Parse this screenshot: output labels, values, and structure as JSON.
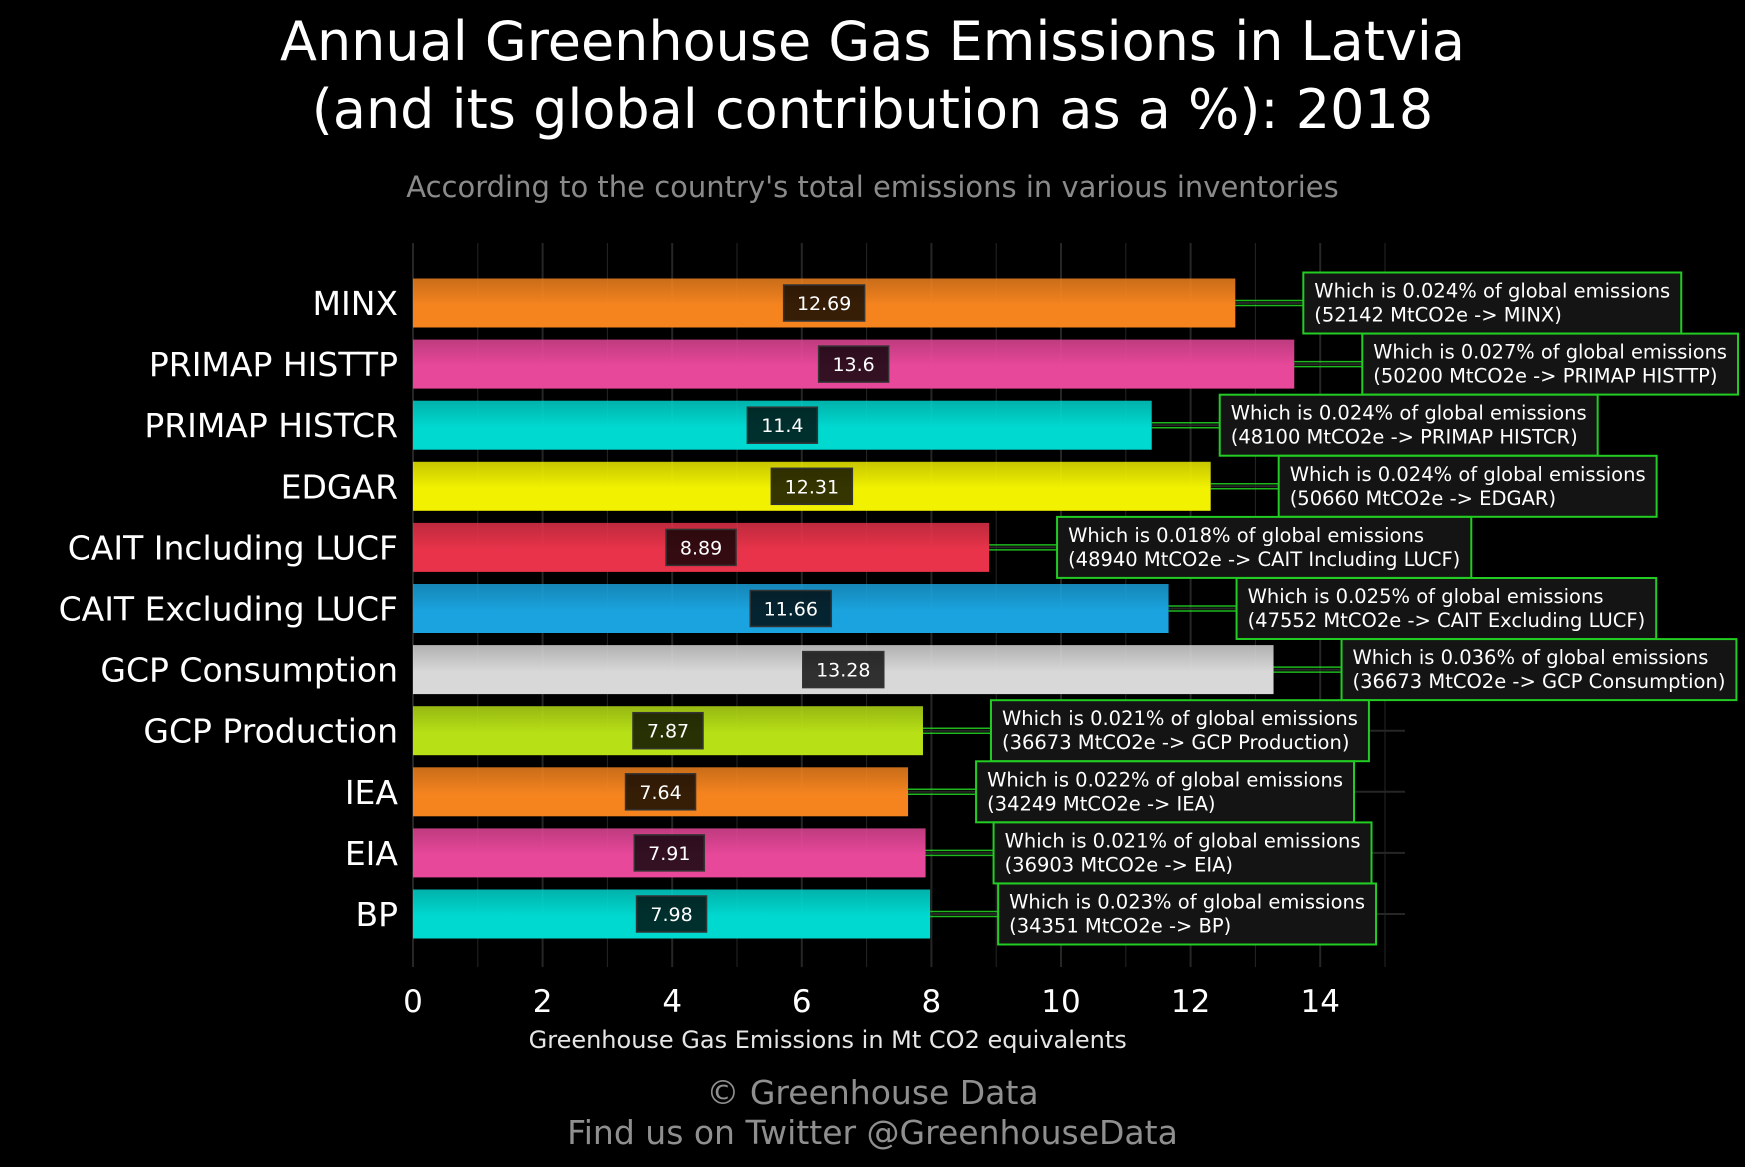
{
  "header": {
    "title_line1": "Annual Greenhouse Gas Emissions in Latvia",
    "title_line2": "(and its global contribution as a %): 2018",
    "subtitle": "According to the country's total emissions in various inventories"
  },
  "footer": {
    "line1": "© Greenhouse Data",
    "line2": "Find us on Twitter @GreenhouseData"
  },
  "colors": {
    "background": "#000000",
    "grid": "#262626",
    "annotation_border": "#22cc22",
    "annotation_fill": "#141414",
    "connector": "#22cc22"
  },
  "chart_data": {
    "type": "bar",
    "orientation": "horizontal",
    "xlabel": "Greenhouse Gas Emissions in Mt CO2 equivalents",
    "xlim": [
      0,
      15.3
    ],
    "xticks": [
      0,
      2,
      4,
      6,
      8,
      10,
      12,
      14
    ],
    "grid": true,
    "categories": [
      "MINX",
      "PRIMAP HISTTP",
      "PRIMAP HISTCR",
      "EDGAR",
      "CAIT Including LUCF",
      "CAIT Excluding LUCF",
      "GCP Consumption",
      "GCP Production",
      "IEA",
      "EIA",
      "BP"
    ],
    "values": [
      12.69,
      13.6,
      11.4,
      12.31,
      8.89,
      11.66,
      13.28,
      7.87,
      7.64,
      7.91,
      7.98
    ],
    "value_labels": [
      "12.69",
      "13.6",
      "11.4",
      "12.31",
      "8.89",
      "11.66",
      "13.28",
      "7.87",
      "7.64",
      "7.91",
      "7.98"
    ],
    "bar_colors": [
      "#f5841f",
      "#e8489a",
      "#00d9d0",
      "#f2f200",
      "#e8334a",
      "#1aa3de",
      "#d8d8d8",
      "#b7e016",
      "#f5841f",
      "#e8489a",
      "#00d9d0"
    ],
    "annotations": [
      {
        "line1": "Which is 0.024% of global emissions",
        "line2": "(52142 MtCO2e -> MINX)"
      },
      {
        "line1": "Which is 0.027% of global emissions",
        "line2": "(50200 MtCO2e -> PRIMAP HISTTP)"
      },
      {
        "line1": "Which is 0.024% of global emissions",
        "line2": "(48100 MtCO2e -> PRIMAP HISTCR)"
      },
      {
        "line1": "Which is 0.024% of global emissions",
        "line2": "(50660 MtCO2e -> EDGAR)"
      },
      {
        "line1": "Which is 0.018% of global emissions",
        "line2": "(48940 MtCO2e -> CAIT Including LUCF)"
      },
      {
        "line1": "Which is 0.025% of global emissions",
        "line2": "(47552 MtCO2e -> CAIT Excluding LUCF)"
      },
      {
        "line1": "Which is 0.036% of global emissions",
        "line2": "(36673 MtCO2e -> GCP Consumption)"
      },
      {
        "line1": "Which is 0.021% of global emissions",
        "line2": "(36673 MtCO2e -> GCP Production)"
      },
      {
        "line1": "Which is 0.022% of global emissions",
        "line2": "(34249 MtCO2e -> IEA)"
      },
      {
        "line1": "Which is 0.021% of global emissions",
        "line2": "(36903 MtCO2e -> EIA)"
      },
      {
        "line1": "Which is 0.023% of global emissions",
        "line2": "(34351 MtCO2e -> BP)"
      }
    ]
  }
}
